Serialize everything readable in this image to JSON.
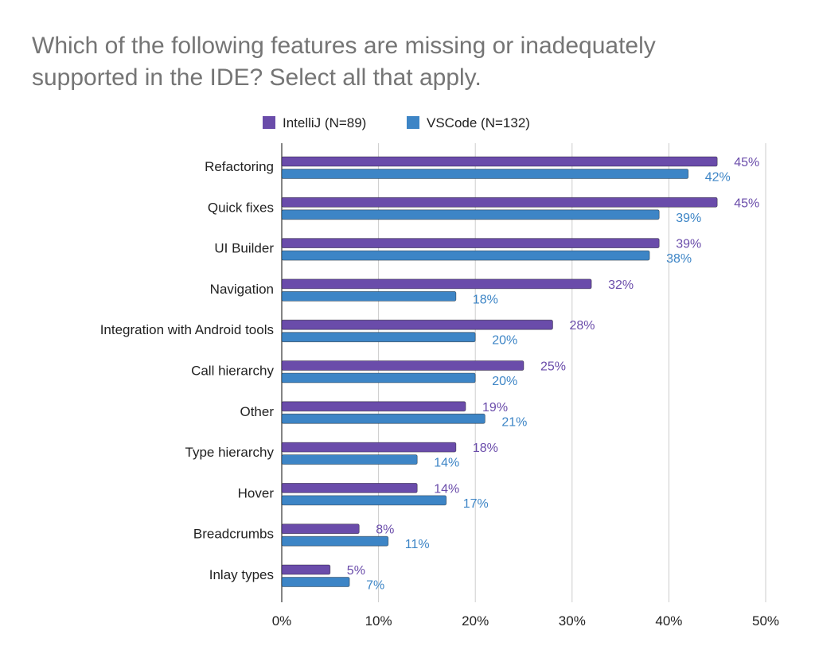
{
  "chart_data": {
    "type": "bar",
    "orientation": "horizontal",
    "title_lines": [
      "Which of the following features are missing or inadequately",
      "supported in the IDE? Select all that apply."
    ],
    "categories": [
      "Refactoring",
      "Quick fixes",
      "UI Builder",
      "Navigation",
      "Integration with Android tools",
      "Call hierarchy",
      "Other",
      "Type hierarchy",
      "Hover",
      "Breadcrumbs",
      "Inlay types"
    ],
    "series": [
      {
        "name": "IntelliJ (N=89)",
        "color": "#6a4caa",
        "values": [
          45,
          45,
          39,
          32,
          28,
          25,
          19,
          18,
          14,
          8,
          5
        ],
        "labels": [
          "45%",
          "45%",
          "39%",
          "32%",
          "28%",
          "25%",
          "19%",
          "18%",
          "14%",
          "8%",
          "5%"
        ]
      },
      {
        "name": "VSCode (N=132)",
        "color": "#3d85c6",
        "values": [
          42,
          39,
          38,
          18,
          20,
          20,
          21,
          14,
          17,
          11,
          7
        ],
        "labels": [
          "42%",
          "39%",
          "38%",
          "18%",
          "20%",
          "20%",
          "21%",
          "14%",
          "17%",
          "11%",
          "7%"
        ]
      }
    ],
    "x_ticks": [
      "0%",
      "10%",
      "20%",
      "30%",
      "40%",
      "50%"
    ],
    "xlim": [
      0,
      50
    ],
    "grid": true,
    "legend_position": "top"
  }
}
